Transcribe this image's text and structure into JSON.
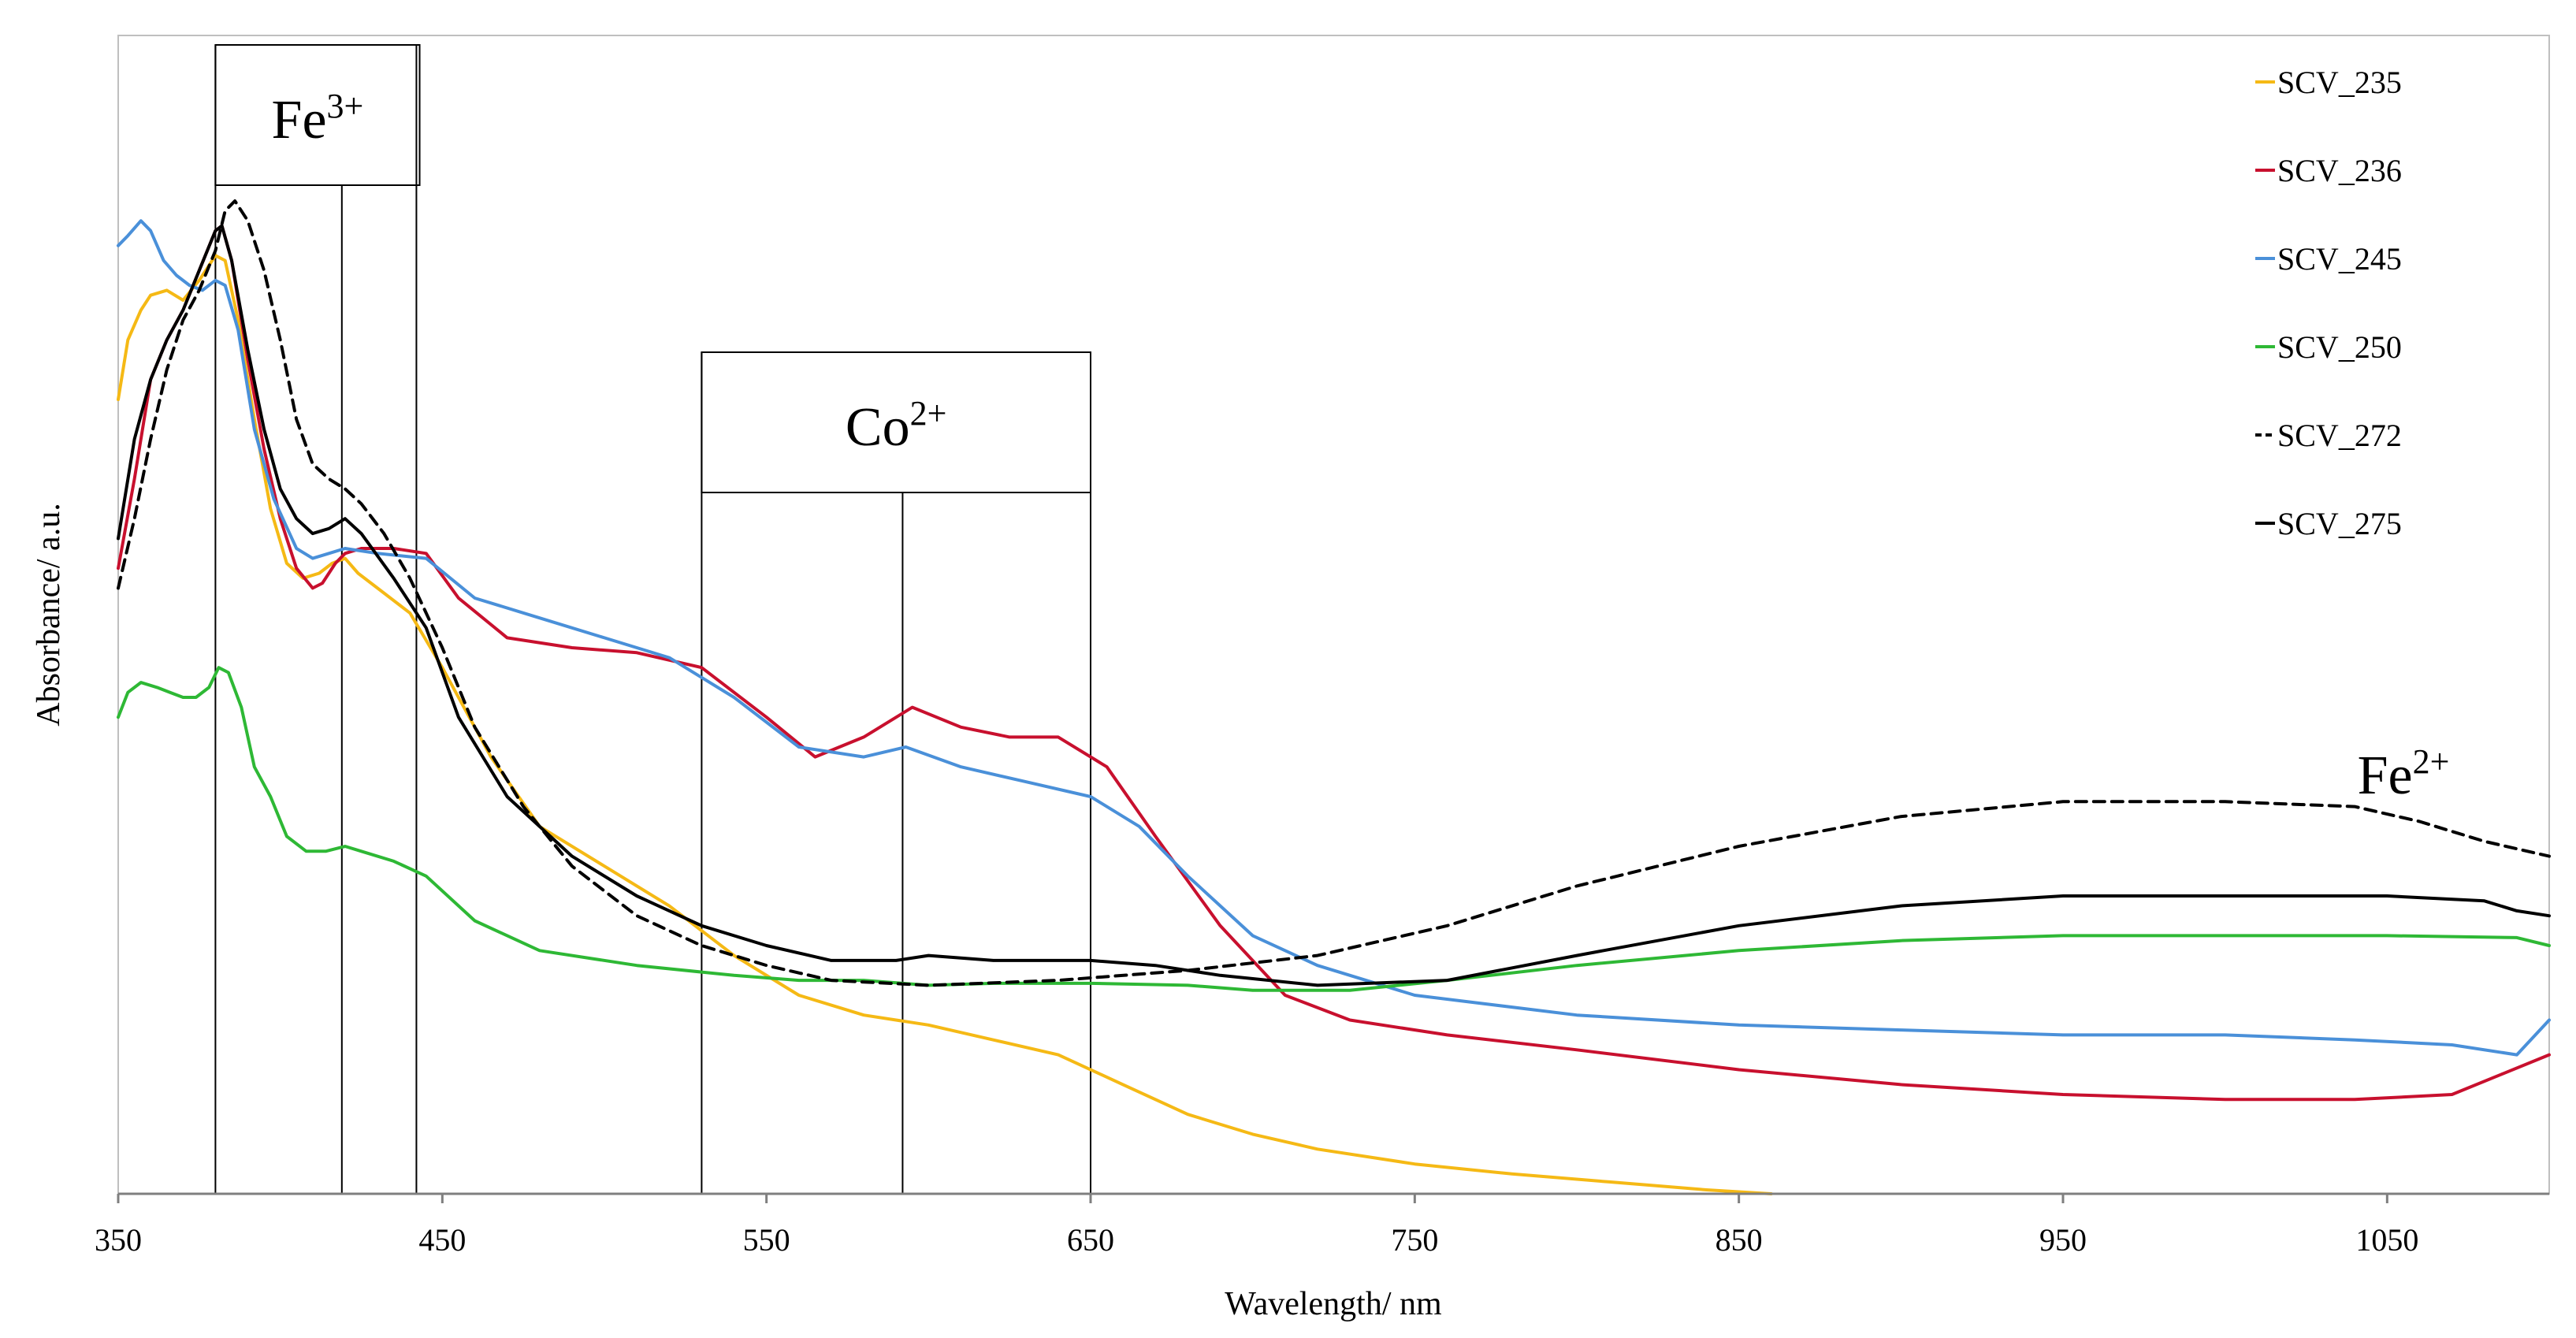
{
  "chart_data": {
    "type": "line",
    "title": "",
    "xlabel": "Wavelength/ nm",
    "ylabel": "Absorbance/ a.u.",
    "xlim": [
      350,
      1100
    ],
    "ylim": [
      0,
      1
    ],
    "y_ticks_shown": false,
    "x_ticks": [
      350,
      450,
      550,
      650,
      750,
      850,
      950,
      1050
    ],
    "x_tick_labels": [
      "350",
      "450",
      "550",
      "650",
      "750",
      "850",
      "950",
      "1050"
    ],
    "legend_position": "top-right",
    "series": [
      {
        "name": "SCV_235",
        "color": "#F5B915",
        "dash": "solid",
        "x": [
          350,
          353,
          357,
          360,
          365,
          370,
          375,
          380,
          383,
          387,
          392,
          397,
          402,
          407,
          412,
          416,
          420,
          424,
          430,
          440,
          450,
          465,
          480,
          500,
          520,
          540,
          560,
          580,
          600,
          620,
          640,
          660,
          680,
          700,
          720,
          750,
          780,
          810,
          840,
          860
        ],
        "y": [
          0.8,
          0.86,
          0.89,
          0.905,
          0.91,
          0.9,
          0.92,
          0.945,
          0.94,
          0.88,
          0.78,
          0.69,
          0.635,
          0.62,
          0.625,
          0.635,
          0.64,
          0.625,
          0.61,
          0.585,
          0.53,
          0.44,
          0.37,
          0.33,
          0.29,
          0.24,
          0.2,
          0.18,
          0.17,
          0.155,
          0.14,
          0.11,
          0.08,
          0.06,
          0.045,
          0.03,
          0.02,
          0.012,
          0.004,
          0.0
        ]
      },
      {
        "name": "SCV_236",
        "color": "#C8102E",
        "dash": "solid",
        "x": [
          350,
          355,
          360,
          365,
          370,
          375,
          380,
          382,
          385,
          390,
          395,
          400,
          405,
          410,
          413,
          417,
          420,
          425,
          435,
          445,
          455,
          470,
          490,
          510,
          530,
          550,
          565,
          580,
          595,
          610,
          625,
          640,
          655,
          670,
          690,
          710,
          730,
          760,
          800,
          850,
          900,
          950,
          1000,
          1040,
          1070,
          1085,
          1100
        ],
        "y": [
          0.63,
          0.72,
          0.82,
          0.86,
          0.89,
          0.93,
          0.97,
          0.975,
          0.94,
          0.84,
          0.75,
          0.68,
          0.63,
          0.61,
          0.615,
          0.635,
          0.645,
          0.65,
          0.65,
          0.645,
          0.6,
          0.56,
          0.55,
          0.545,
          0.53,
          0.48,
          0.44,
          0.46,
          0.49,
          0.47,
          0.46,
          0.46,
          0.43,
          0.36,
          0.27,
          0.2,
          0.175,
          0.16,
          0.145,
          0.125,
          0.11,
          0.1,
          0.095,
          0.095,
          0.1,
          0.12,
          0.14
        ]
      },
      {
        "name": "SCV_245",
        "color": "#4A90D9",
        "dash": "solid",
        "x": [
          350,
          353,
          357,
          360,
          364,
          368,
          372,
          376,
          380,
          383,
          387,
          392,
          398,
          405,
          410,
          415,
          420,
          430,
          445,
          460,
          480,
          500,
          520,
          540,
          560,
          580,
          593,
          610,
          630,
          650,
          665,
          680,
          700,
          720,
          750,
          800,
          850,
          900,
          950,
          1000,
          1040,
          1070,
          1090,
          1100
        ],
        "y": [
          0.955,
          0.965,
          0.98,
          0.97,
          0.94,
          0.925,
          0.915,
          0.91,
          0.92,
          0.915,
          0.87,
          0.77,
          0.7,
          0.65,
          0.64,
          0.645,
          0.65,
          0.645,
          0.64,
          0.6,
          0.58,
          0.56,
          0.54,
          0.5,
          0.45,
          0.44,
          0.45,
          0.43,
          0.415,
          0.4,
          0.37,
          0.32,
          0.26,
          0.23,
          0.2,
          0.18,
          0.17,
          0.165,
          0.16,
          0.16,
          0.155,
          0.15,
          0.14,
          0.175
        ]
      },
      {
        "name": "SCV_250",
        "color": "#2EB835",
        "dash": "solid",
        "x": [
          350,
          353,
          357,
          362,
          366,
          370,
          374,
          378,
          381,
          384,
          388,
          392,
          397,
          402,
          408,
          414,
          420,
          425,
          435,
          445,
          460,
          480,
          510,
          540,
          560,
          580,
          600,
          620,
          650,
          680,
          700,
          730,
          760,
          800,
          850,
          900,
          950,
          1000,
          1050,
          1090,
          1100
        ],
        "y": [
          0.48,
          0.505,
          0.515,
          0.51,
          0.505,
          0.5,
          0.5,
          0.51,
          0.53,
          0.525,
          0.49,
          0.43,
          0.4,
          0.36,
          0.345,
          0.345,
          0.35,
          0.345,
          0.335,
          0.32,
          0.275,
          0.245,
          0.23,
          0.22,
          0.215,
          0.215,
          0.21,
          0.212,
          0.212,
          0.21,
          0.205,
          0.205,
          0.215,
          0.23,
          0.245,
          0.255,
          0.26,
          0.26,
          0.26,
          0.258,
          0.25
        ]
      },
      {
        "name": "SCV_272",
        "color": "#000000",
        "dash": "dashed",
        "x": [
          350,
          355,
          360,
          365,
          370,
          375,
          380,
          383,
          386,
          390,
          395,
          400,
          405,
          410,
          415,
          420,
          425,
          432,
          440,
          450,
          460,
          475,
          490,
          510,
          530,
          550,
          570,
          600,
          640,
          680,
          720,
          760,
          800,
          850,
          900,
          950,
          1000,
          1040,
          1060,
          1080,
          1100
        ],
        "y": [
          0.61,
          0.68,
          0.76,
          0.83,
          0.88,
          0.91,
          0.95,
          0.99,
          1.0,
          0.98,
          0.93,
          0.86,
          0.78,
          0.735,
          0.72,
          0.71,
          0.695,
          0.665,
          0.62,
          0.55,
          0.47,
          0.39,
          0.33,
          0.28,
          0.25,
          0.23,
          0.215,
          0.21,
          0.215,
          0.225,
          0.24,
          0.27,
          0.31,
          0.35,
          0.38,
          0.395,
          0.395,
          0.39,
          0.375,
          0.355,
          0.34
        ]
      },
      {
        "name": "SCV_275",
        "color": "#000000",
        "dash": "solid",
        "x": [
          350,
          355,
          360,
          365,
          370,
          375,
          380,
          382,
          385,
          390,
          395,
          400,
          405,
          410,
          415,
          420,
          425,
          435,
          445,
          455,
          470,
          490,
          510,
          530,
          550,
          570,
          590,
          600,
          620,
          650,
          670,
          690,
          720,
          760,
          800,
          850,
          900,
          950,
          1000,
          1050,
          1080,
          1090,
          1100
        ],
        "y": [
          0.66,
          0.76,
          0.82,
          0.86,
          0.89,
          0.93,
          0.97,
          0.975,
          0.94,
          0.85,
          0.77,
          0.71,
          0.68,
          0.665,
          0.67,
          0.68,
          0.665,
          0.62,
          0.57,
          0.48,
          0.4,
          0.34,
          0.3,
          0.27,
          0.25,
          0.235,
          0.235,
          0.24,
          0.235,
          0.235,
          0.23,
          0.22,
          0.21,
          0.215,
          0.24,
          0.27,
          0.29,
          0.3,
          0.3,
          0.3,
          0.295,
          0.285,
          0.28
        ]
      }
    ],
    "annotations": [
      {
        "label": "Fe",
        "superscript": "3+",
        "box_x_range": [
          380,
          443
        ],
        "lines_at": [
          380,
          419,
          442
        ]
      },
      {
        "label": "Co",
        "superscript": "2+",
        "box_x_range": [
          530,
          650
        ],
        "lines_at": [
          530,
          592,
          650
        ]
      },
      {
        "label": "Fe",
        "superscript": "2+",
        "anchor_x": 1060
      }
    ]
  }
}
